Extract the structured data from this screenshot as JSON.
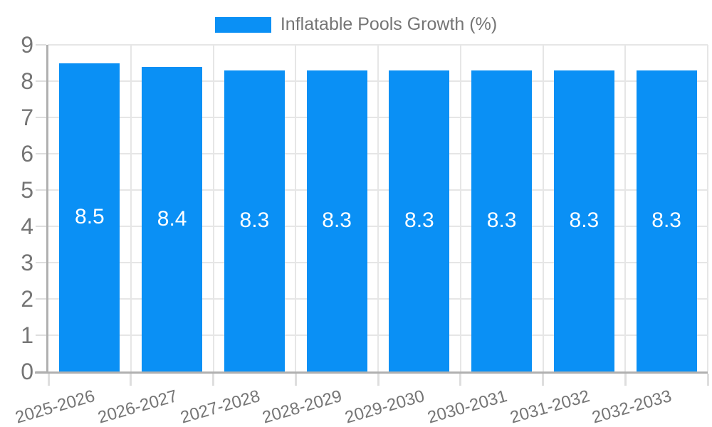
{
  "chart_data": {
    "type": "bar",
    "title": "Inflatable Pools Growth (%)",
    "categories": [
      "2025-2026",
      "2026-2027",
      "2027-2028",
      "2028-2029",
      "2029-2030",
      "2030-2031",
      "2031-2032",
      "2032-2033"
    ],
    "values": [
      8.5,
      8.4,
      8.3,
      8.3,
      8.3,
      8.3,
      8.3,
      8.3
    ],
    "bar_value_labels": [
      "8.5",
      "8.4",
      "8.3",
      "8.3",
      "8.3",
      "8.3",
      "8.3",
      "8.3"
    ],
    "xlabel": "",
    "ylabel": "",
    "ylim": [
      0,
      9
    ],
    "ytick_labels": [
      "0",
      "1",
      "2",
      "3",
      "4",
      "5",
      "6",
      "7",
      "8",
      "9"
    ],
    "grid": true,
    "legend_position": "top",
    "colors": {
      "bar": "#0a90f5",
      "bar_label": "#ffffff",
      "grid": "#e6e6e6",
      "axis": "#b0b0b0",
      "tick_mark": "#dedede",
      "tick_label": "#757575",
      "legend_text": "#757575",
      "background": "#ffffff"
    }
  }
}
